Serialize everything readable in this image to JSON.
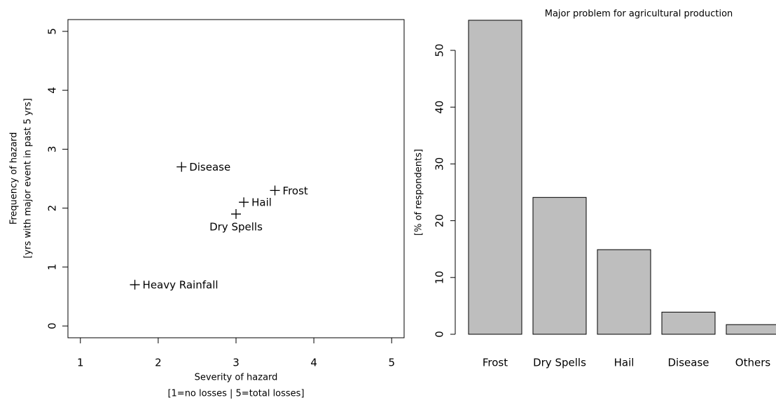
{
  "chart_data": [
    {
      "type": "scatter",
      "x_label": "Severity of hazard",
      "x_label_2": "[1=no losses | 5=total losses]",
      "y_label": "Frequency of hazard",
      "y_label_2": "[yrs with major event in past 5 yrs]",
      "point_labels": [
        "Disease",
        "Frost",
        "Hail",
        "Dry Spells",
        "Heavy Rainfall"
      ],
      "x": [
        2.3,
        3.5,
        3.1,
        3.0,
        1.7
      ],
      "values": [
        2.7,
        2.3,
        2.1,
        1.9,
        0.7
      ],
      "xlim": [
        0.84,
        5.16
      ],
      "ylim": [
        -0.2,
        5.2
      ],
      "xticks": [
        1,
        2,
        3,
        4,
        5
      ],
      "yticks": [
        0,
        1,
        2,
        3,
        4,
        5
      ],
      "color": "#000000"
    },
    {
      "type": "bar",
      "title": "Major problem for agricultural production",
      "y_label": "[% of respondents]",
      "categories": [
        "Frost",
        "Dry Spells",
        "Hail",
        "Disease",
        "Others"
      ],
      "values": [
        55.3,
        24.1,
        14.9,
        3.9,
        1.7
      ],
      "ylim": [
        0,
        57
      ],
      "yticks": [
        0,
        10,
        20,
        30,
        40,
        50
      ],
      "color": "#bebebe"
    }
  ]
}
